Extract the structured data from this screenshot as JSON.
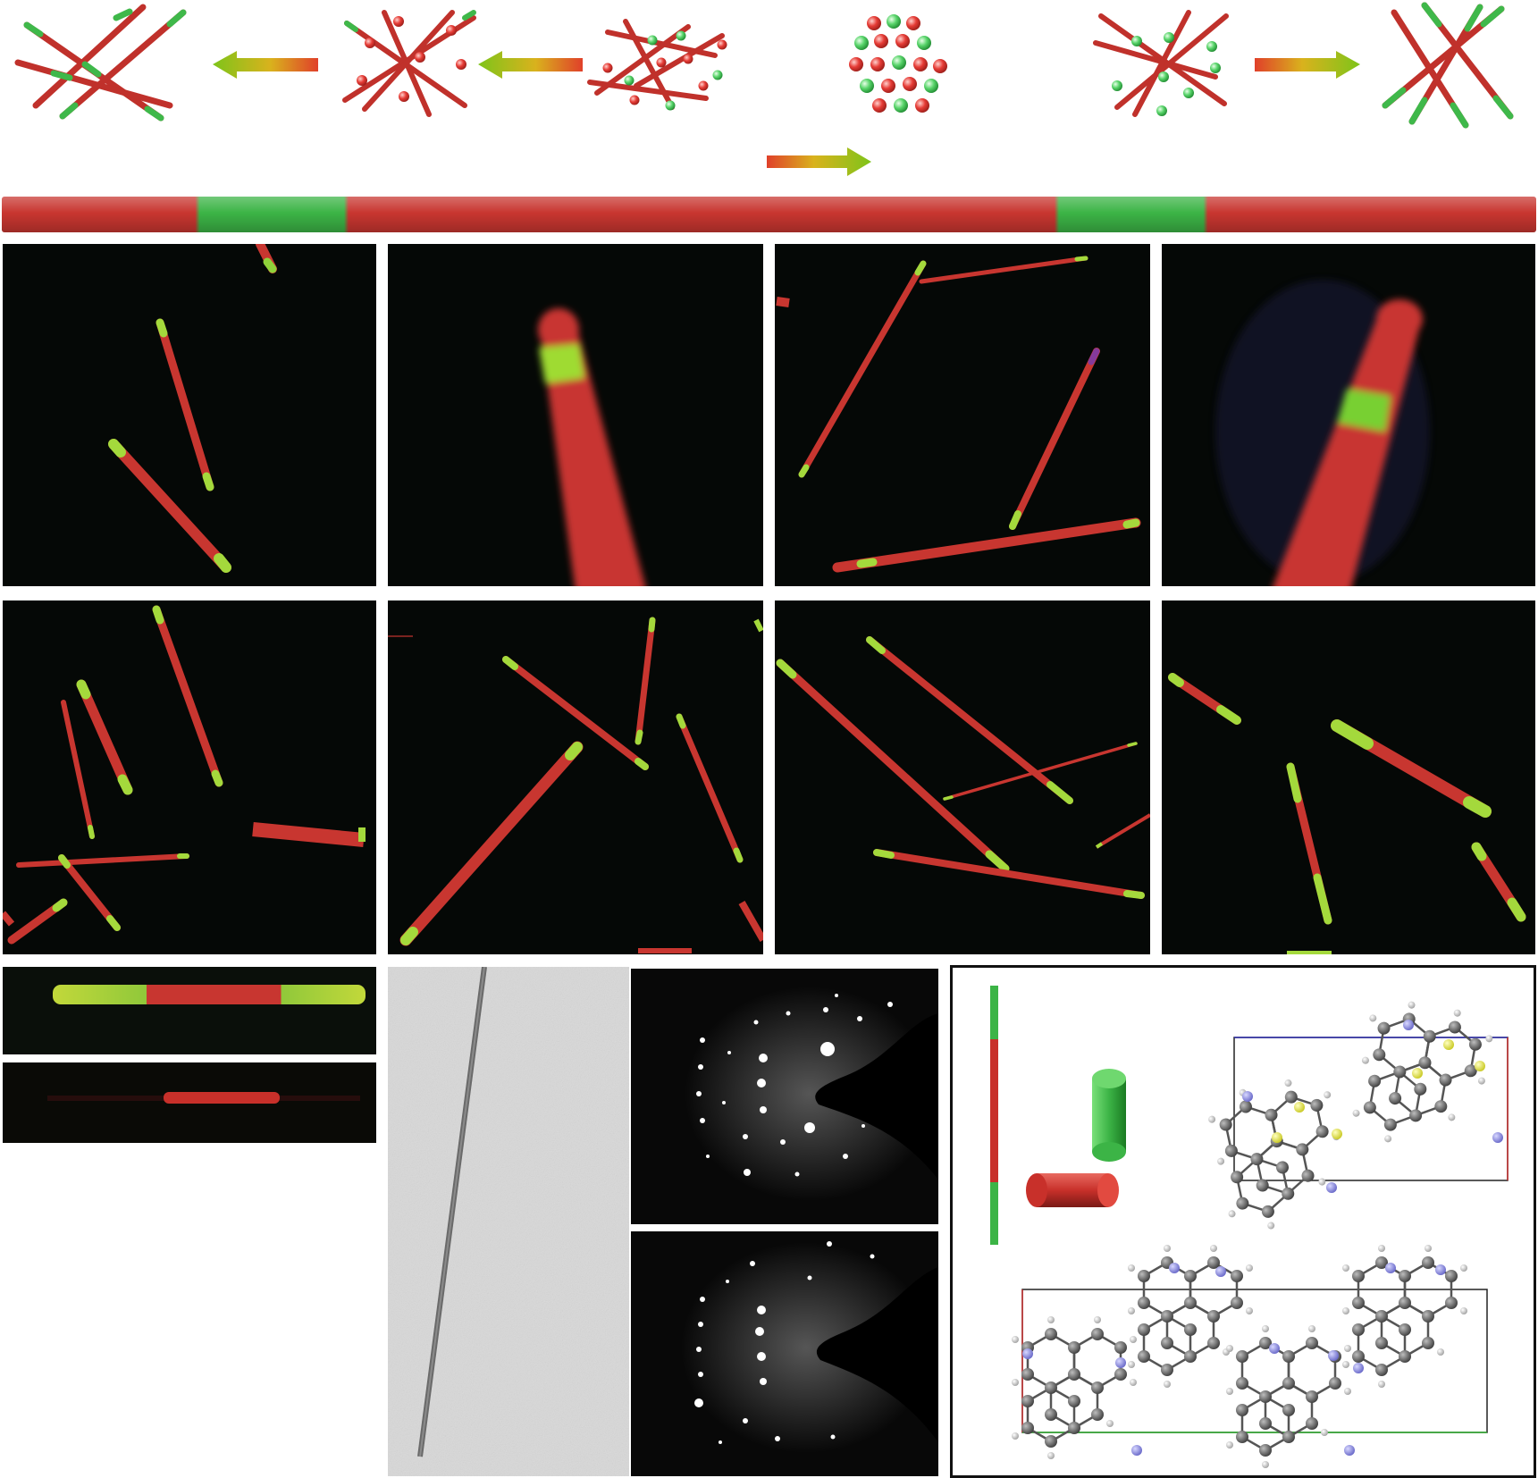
{
  "figure": {
    "scheme": {
      "description_items": [
        "crossed-rods-red-green-tips",
        "crossed-rods-red-beads",
        "rod-network-beads",
        "bead-cluster",
        "crossed-rods-green-beads",
        "crossed-rods-green-tips"
      ]
    },
    "colors": {
      "red": "#d13a32",
      "green": "#3fb84a",
      "arrow_green": "#7ec41a",
      "arrow_red": "#e0402a",
      "background_dark": "#050806"
    },
    "icons": [
      "arrow-left-icon",
      "arrow-right-icon"
    ]
  }
}
